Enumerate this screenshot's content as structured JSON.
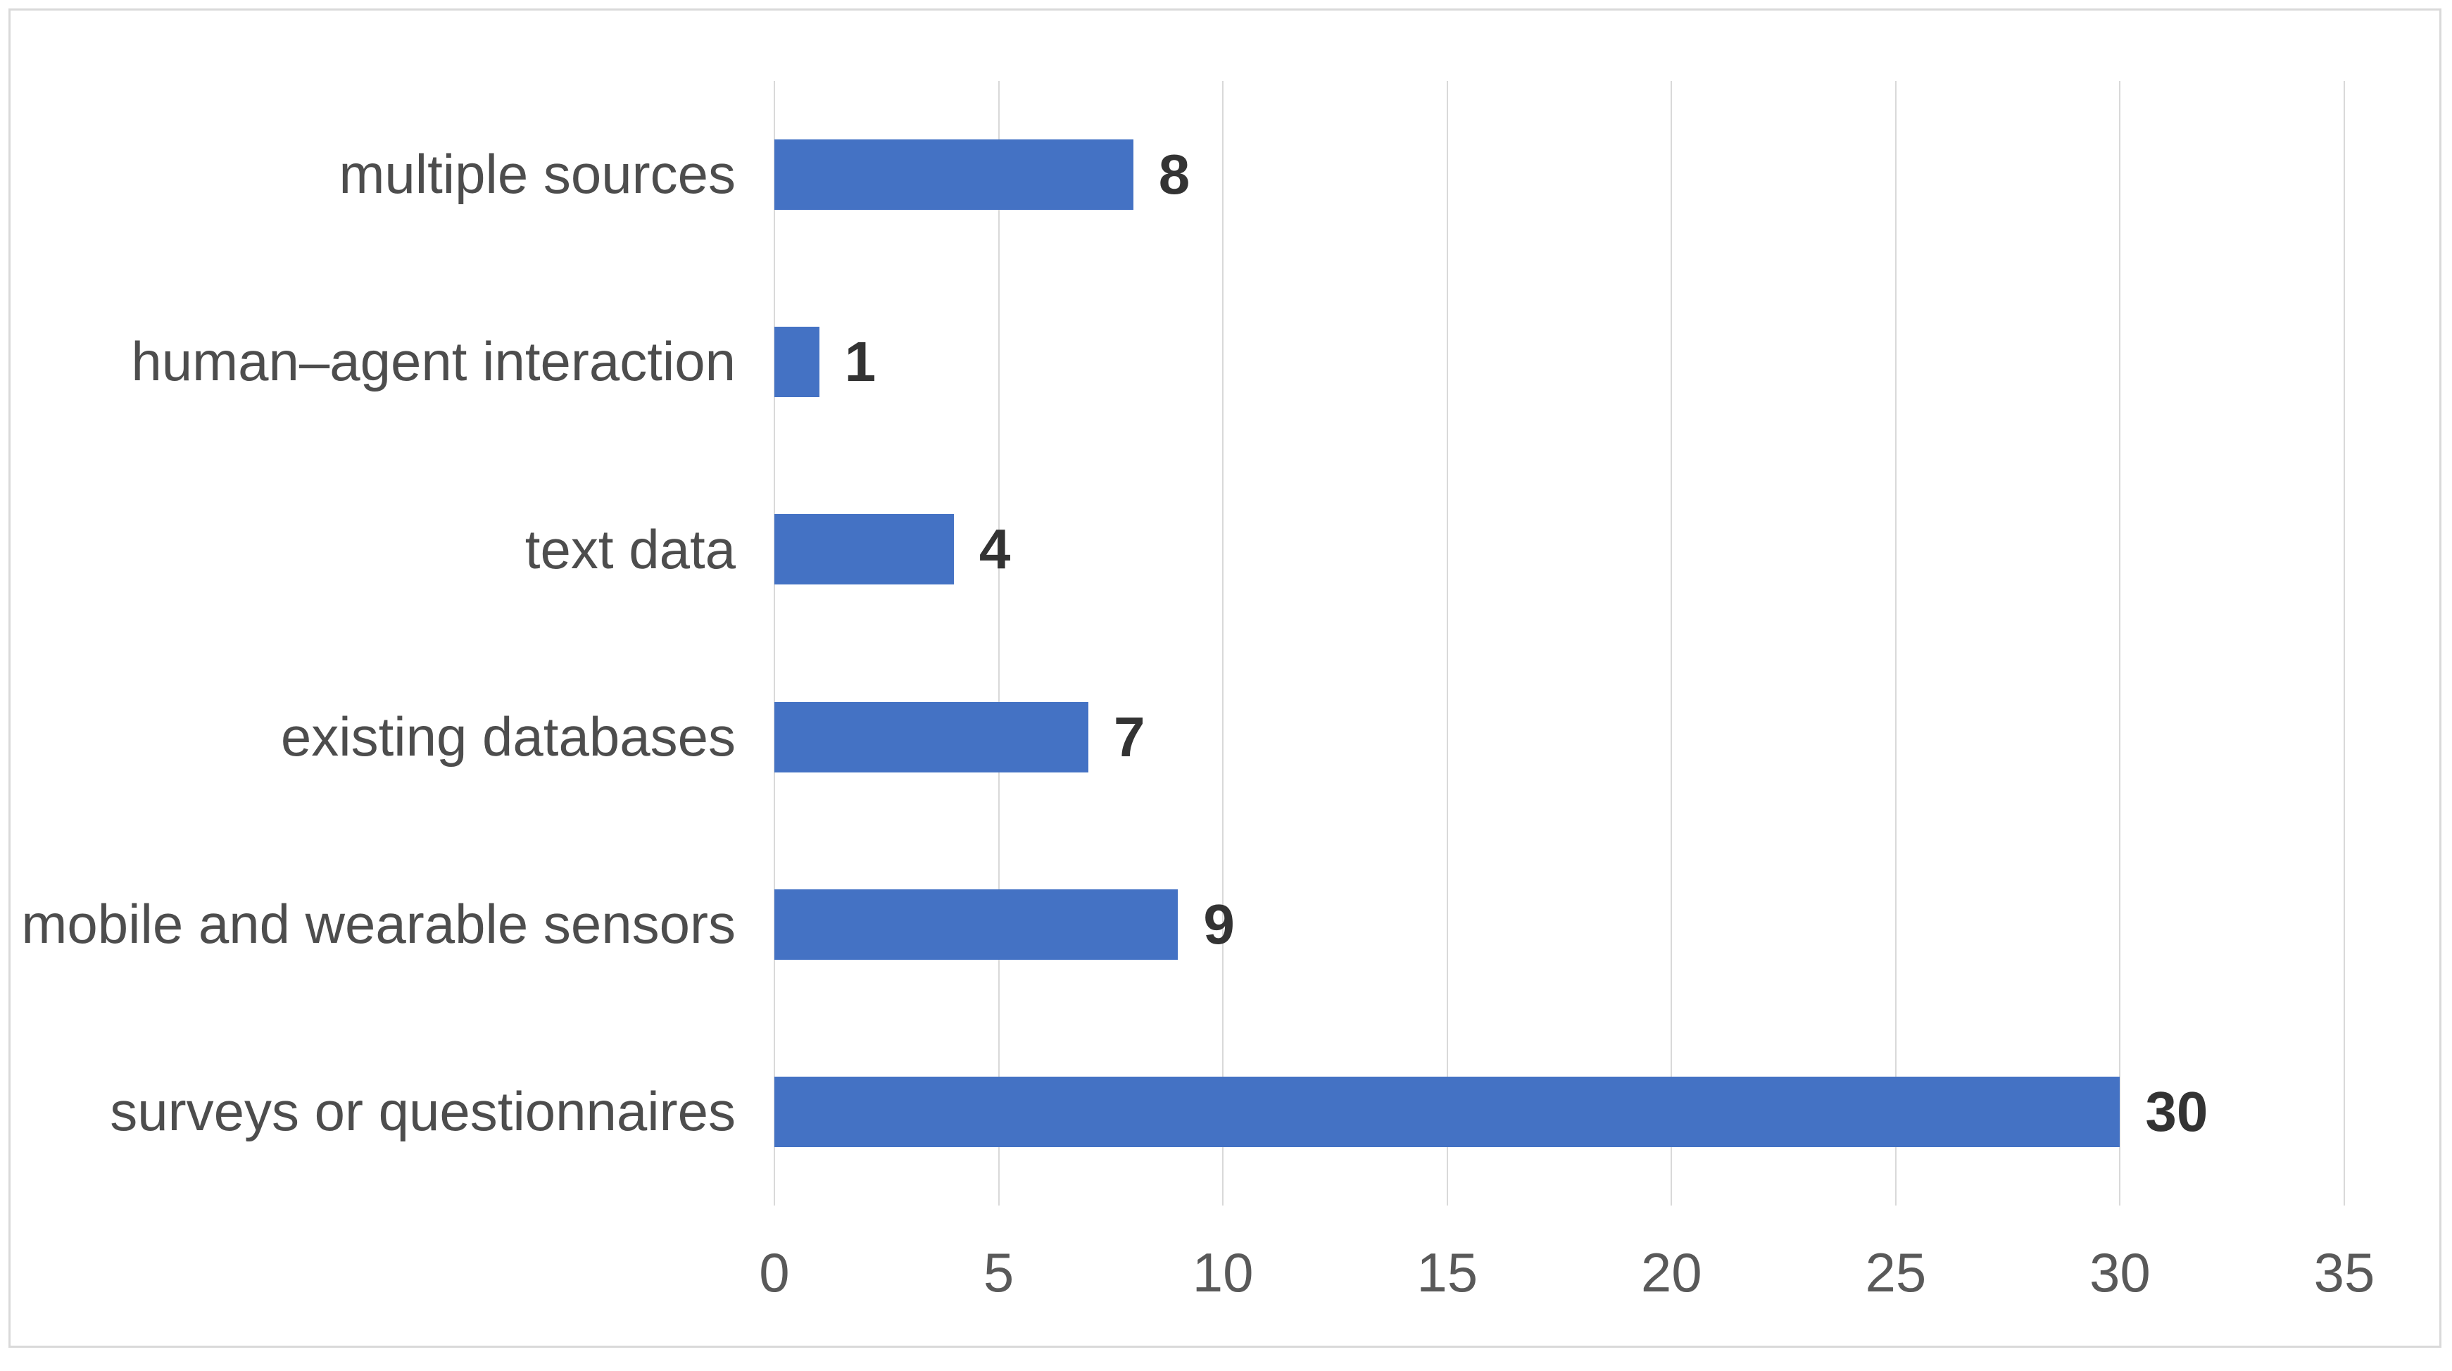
{
  "chart_data": {
    "type": "bar",
    "orientation": "horizontal",
    "title": "",
    "xlabel": "",
    "ylabel": "",
    "categories": [
      "multiple sources",
      "human–agent interaction",
      "text data",
      "existing databases",
      "mobile and wearable sensors",
      "surveys or questionnaires"
    ],
    "values": [
      8,
      1,
      4,
      7,
      9,
      30
    ],
    "data_labels": [
      "8",
      "1",
      "4",
      "7",
      "9",
      "30"
    ],
    "x_ticks": [
      "0",
      "5",
      "10",
      "15",
      "20",
      "25",
      "30",
      "35"
    ],
    "xlim": [
      0,
      35
    ],
    "grid": "vertical-only",
    "legend": "none",
    "colors": {
      "bar": "#4472c4",
      "gridline": "#d9d9d9",
      "frame_border": "#d9d9d9",
      "category_label": "#4d4d4d",
      "tick_label": "#595959",
      "value_label": "#333333",
      "background": "#ffffff"
    }
  }
}
